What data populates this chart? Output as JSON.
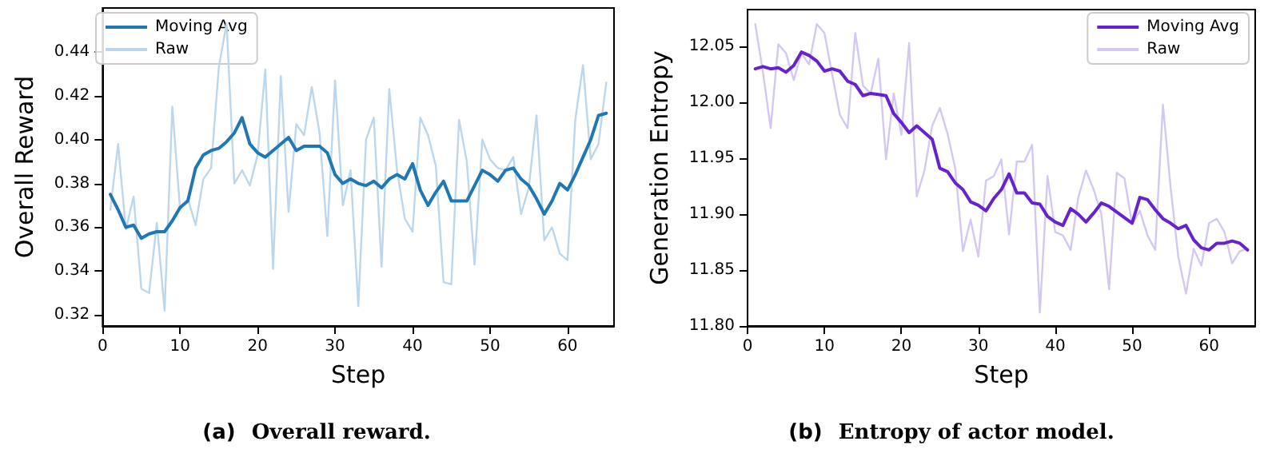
{
  "chart_data": [
    {
      "type": "line",
      "title": "(a) Overall reward.",
      "xlabel": "Step",
      "ylabel": "Overall Reward",
      "xlim": [
        0,
        66
      ],
      "xticks": [
        0,
        10,
        20,
        30,
        40,
        50,
        60
      ],
      "ylim": [
        0.315,
        0.46
      ],
      "yticks": [
        0.32,
        0.34,
        0.36,
        0.38,
        {
          "value": 0.4,
          "label": "0.40"
        },
        0.42,
        0.44
      ],
      "grid": false,
      "legend": "top left",
      "marker": "none",
      "line_style": "solid",
      "x": [
        1,
        2,
        3,
        4,
        5,
        6,
        7,
        8,
        9,
        10,
        11,
        12,
        13,
        14,
        15,
        16,
        17,
        18,
        19,
        20,
        21,
        22,
        23,
        24,
        25,
        26,
        27,
        28,
        29,
        30,
        31,
        32,
        33,
        34,
        35,
        36,
        37,
        38,
        39,
        40,
        41,
        42,
        43,
        44,
        45,
        46,
        47,
        48,
        49,
        50,
        51,
        52,
        53,
        54,
        55,
        56,
        57,
        58,
        59,
        60,
        61,
        62,
        63,
        64,
        65
      ],
      "series": [
        {
          "name": "Moving Avg",
          "color": "#1f77b4",
          "values": [
            0.375,
            0.368,
            0.36,
            0.361,
            0.355,
            0.357,
            0.358,
            0.358,
            0.363,
            0.369,
            0.372,
            0.387,
            0.393,
            0.395,
            0.396,
            0.399,
            0.403,
            0.41,
            0.398,
            0.394,
            0.392,
            0.395,
            0.398,
            0.401,
            0.395,
            0.397,
            0.397,
            0.397,
            0.394,
            0.384,
            0.38,
            0.382,
            0.38,
            0.379,
            0.381,
            0.378,
            0.382,
            0.384,
            0.382,
            0.389,
            0.377,
            0.37,
            0.376,
            0.381,
            0.372,
            0.372,
            0.372,
            0.379,
            0.386,
            0.384,
            0.381,
            0.386,
            0.387,
            0.382,
            0.379,
            0.373,
            0.366,
            0.372,
            0.38,
            0.377,
            0.384,
            0.392,
            0.4,
            0.411,
            0.412
          ]
        },
        {
          "name": "Raw",
          "color": "#bcd6ec",
          "values": [
            0.368,
            0.398,
            0.359,
            0.374,
            0.332,
            0.33,
            0.362,
            0.322,
            0.415,
            0.368,
            0.373,
            0.361,
            0.382,
            0.387,
            0.433,
            0.453,
            0.38,
            0.386,
            0.379,
            0.393,
            0.432,
            0.341,
            0.429,
            0.367,
            0.407,
            0.402,
            0.424,
            0.403,
            0.356,
            0.427,
            0.37,
            0.386,
            0.324,
            0.4,
            0.41,
            0.342,
            0.423,
            0.386,
            0.364,
            0.358,
            0.41,
            0.402,
            0.388,
            0.335,
            0.334,
            0.409,
            0.39,
            0.343,
            0.4,
            0.391,
            0.387,
            0.386,
            0.392,
            0.366,
            0.378,
            0.411,
            0.354,
            0.36,
            0.348,
            0.345,
            0.409,
            0.434,
            0.391,
            0.398,
            0.426
          ]
        }
      ]
    },
    {
      "type": "line",
      "title": "(b) Entropy of actor model.",
      "xlabel": "Step",
      "ylabel": "Generation Entropy",
      "xlim": [
        0,
        66
      ],
      "xticks": [
        0,
        10,
        20,
        30,
        40,
        50,
        60
      ],
      "ylim": [
        11.8,
        12.083
      ],
      "yticks": [
        {
          "value": 11.8,
          "label": "11.80"
        },
        11.85,
        {
          "value": 11.9,
          "label": "11.90"
        },
        11.95,
        {
          "value": 12,
          "label": "12.00"
        },
        12.05
      ],
      "grid": false,
      "legend": "top right",
      "marker": "none",
      "line_style": "solid",
      "x": [
        1,
        2,
        3,
        4,
        5,
        6,
        7,
        8,
        9,
        10,
        11,
        12,
        13,
        14,
        15,
        16,
        17,
        18,
        19,
        20,
        21,
        22,
        23,
        24,
        25,
        26,
        27,
        28,
        29,
        30,
        31,
        32,
        33,
        34,
        35,
        36,
        37,
        38,
        39,
        40,
        41,
        42,
        43,
        44,
        45,
        46,
        47,
        48,
        49,
        50,
        51,
        52,
        53,
        54,
        55,
        56,
        57,
        58,
        59,
        60,
        61,
        62,
        63,
        64,
        65
      ],
      "series": [
        {
          "name": "Moving Avg",
          "color": "#6622cc",
          "values": [
            12.03,
            12.032,
            12.03,
            12.031,
            12.027,
            12.033,
            12.045,
            12.042,
            12.037,
            12.028,
            12.03,
            12.028,
            12.019,
            12.016,
            12.006,
            12.008,
            12.007,
            12.006,
            11.99,
            11.982,
            11.973,
            11.979,
            11.973,
            11.967,
            11.941,
            11.938,
            11.928,
            11.922,
            11.911,
            11.908,
            11.903,
            11.914,
            11.922,
            11.936,
            11.919,
            11.919,
            11.91,
            11.909,
            11.898,
            11.893,
            11.89,
            11.905,
            11.9,
            11.893,
            11.901,
            11.91,
            11.907,
            11.902,
            11.897,
            11.892,
            11.915,
            11.913,
            11.904,
            11.896,
            11.892,
            11.887,
            11.89,
            11.877,
            11.87,
            11.868,
            11.874,
            11.874,
            11.876,
            11.874,
            11.868
          ]
        },
        {
          "name": "Raw",
          "color": "#d4c8f2",
          "values": [
            12.07,
            12.027,
            11.977,
            12.052,
            12.044,
            12.02,
            12.044,
            12.034,
            12.07,
            12.062,
            12.025,
            11.989,
            11.977,
            12.062,
            12.015,
            12.008,
            12.039,
            11.949,
            12.008,
            11.971,
            12.053,
            11.916,
            11.939,
            11.979,
            11.995,
            11.972,
            11.941,
            11.867,
            11.895,
            11.862,
            11.93,
            11.934,
            11.949,
            11.882,
            11.947,
            11.947,
            11.962,
            11.812,
            11.934,
            11.884,
            11.881,
            11.868,
            11.915,
            11.939,
            11.922,
            11.9,
            11.833,
            11.937,
            11.932,
            11.891,
            11.903,
            11.881,
            11.868,
            11.998,
            11.924,
            11.862,
            11.829,
            11.869,
            11.854,
            11.892,
            11.896,
            11.884,
            11.856,
            11.867,
            11.869
          ]
        }
      ]
    }
  ]
}
